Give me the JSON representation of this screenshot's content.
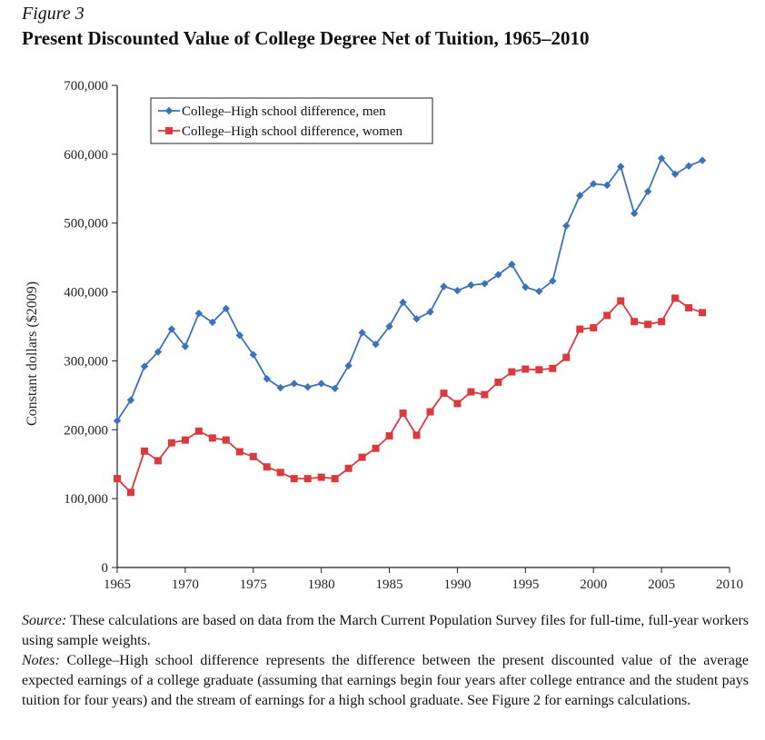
{
  "figure_label": "Figure 3",
  "figure_title": "Present Discounted Value of College Degree Net of Tuition, 1965–2010",
  "chart_data": {
    "type": "line",
    "ylabel": "Constant dollars ($2009)",
    "xlabel": "",
    "xlim": [
      1965,
      2010
    ],
    "ylim": [
      0,
      700000
    ],
    "x_ticks": [
      1965,
      1970,
      1975,
      1980,
      1985,
      1990,
      1995,
      2000,
      2005,
      2010
    ],
    "x_tick_labels": [
      "1965",
      "1970",
      "1975",
      "1980",
      "1985",
      "1990",
      "1995",
      "2000",
      "2005",
      "2010"
    ],
    "y_ticks": [
      0,
      100000,
      200000,
      300000,
      400000,
      500000,
      600000,
      700000
    ],
    "y_tick_labels": [
      "0",
      "100,000",
      "200,000",
      "300,000",
      "400,000",
      "500,000",
      "600,000",
      "700,000"
    ],
    "legend_position": "top-left",
    "grid": false,
    "x": [
      1965,
      1966,
      1967,
      1968,
      1969,
      1970,
      1971,
      1972,
      1973,
      1974,
      1975,
      1976,
      1977,
      1978,
      1979,
      1980,
      1981,
      1982,
      1983,
      1984,
      1985,
      1986,
      1987,
      1988,
      1989,
      1990,
      1991,
      1992,
      1993,
      1994,
      1995,
      1996,
      1997,
      1998,
      1999,
      2000,
      2001,
      2002,
      2003,
      2004,
      2005,
      2006,
      2007,
      2008
    ],
    "series": [
      {
        "name": "College–High school difference, men",
        "color": "#3b72b9",
        "marker": "diamond",
        "values": [
          213000,
          243000,
          292000,
          313000,
          346000,
          321000,
          369000,
          356000,
          376000,
          337000,
          309000,
          274000,
          261000,
          267000,
          262000,
          267000,
          260000,
          293000,
          341000,
          324000,
          350000,
          385000,
          361000,
          371000,
          408000,
          402000,
          410000,
          412000,
          425000,
          440000,
          407000,
          401000,
          416000,
          496000,
          540000,
          557000,
          555000,
          582000,
          514000,
          546000,
          594000,
          571000,
          583000,
          591000
        ]
      },
      {
        "name": "College–High school difference, women",
        "color": "#d93a3e",
        "marker": "square",
        "values": [
          129000,
          109000,
          169000,
          155000,
          181000,
          185000,
          198000,
          188000,
          185000,
          168000,
          161000,
          146000,
          138000,
          129000,
          129000,
          131000,
          129000,
          144000,
          160000,
          173000,
          191000,
          224000,
          192000,
          226000,
          253000,
          238000,
          255000,
          251000,
          269000,
          284000,
          288000,
          287000,
          289000,
          305000,
          346000,
          348000,
          366000,
          387000,
          357000,
          353000,
          357000,
          391000,
          377000,
          370000
        ]
      }
    ]
  },
  "notes": {
    "source_label": "Source:",
    "source_text": " These calculations are based on data from the March Current Population Survey files for full-time, full-year workers using sample weights.",
    "notes_label": "Notes:",
    "notes_text": " College–High school difference represents the difference between the present discounted value of the average expected earnings of a college graduate (assuming that earnings begin four years after college entrance and the student pays tuition for four years) and the stream of earnings for a high school graduate. See Figure 2 for earnings calculations."
  }
}
